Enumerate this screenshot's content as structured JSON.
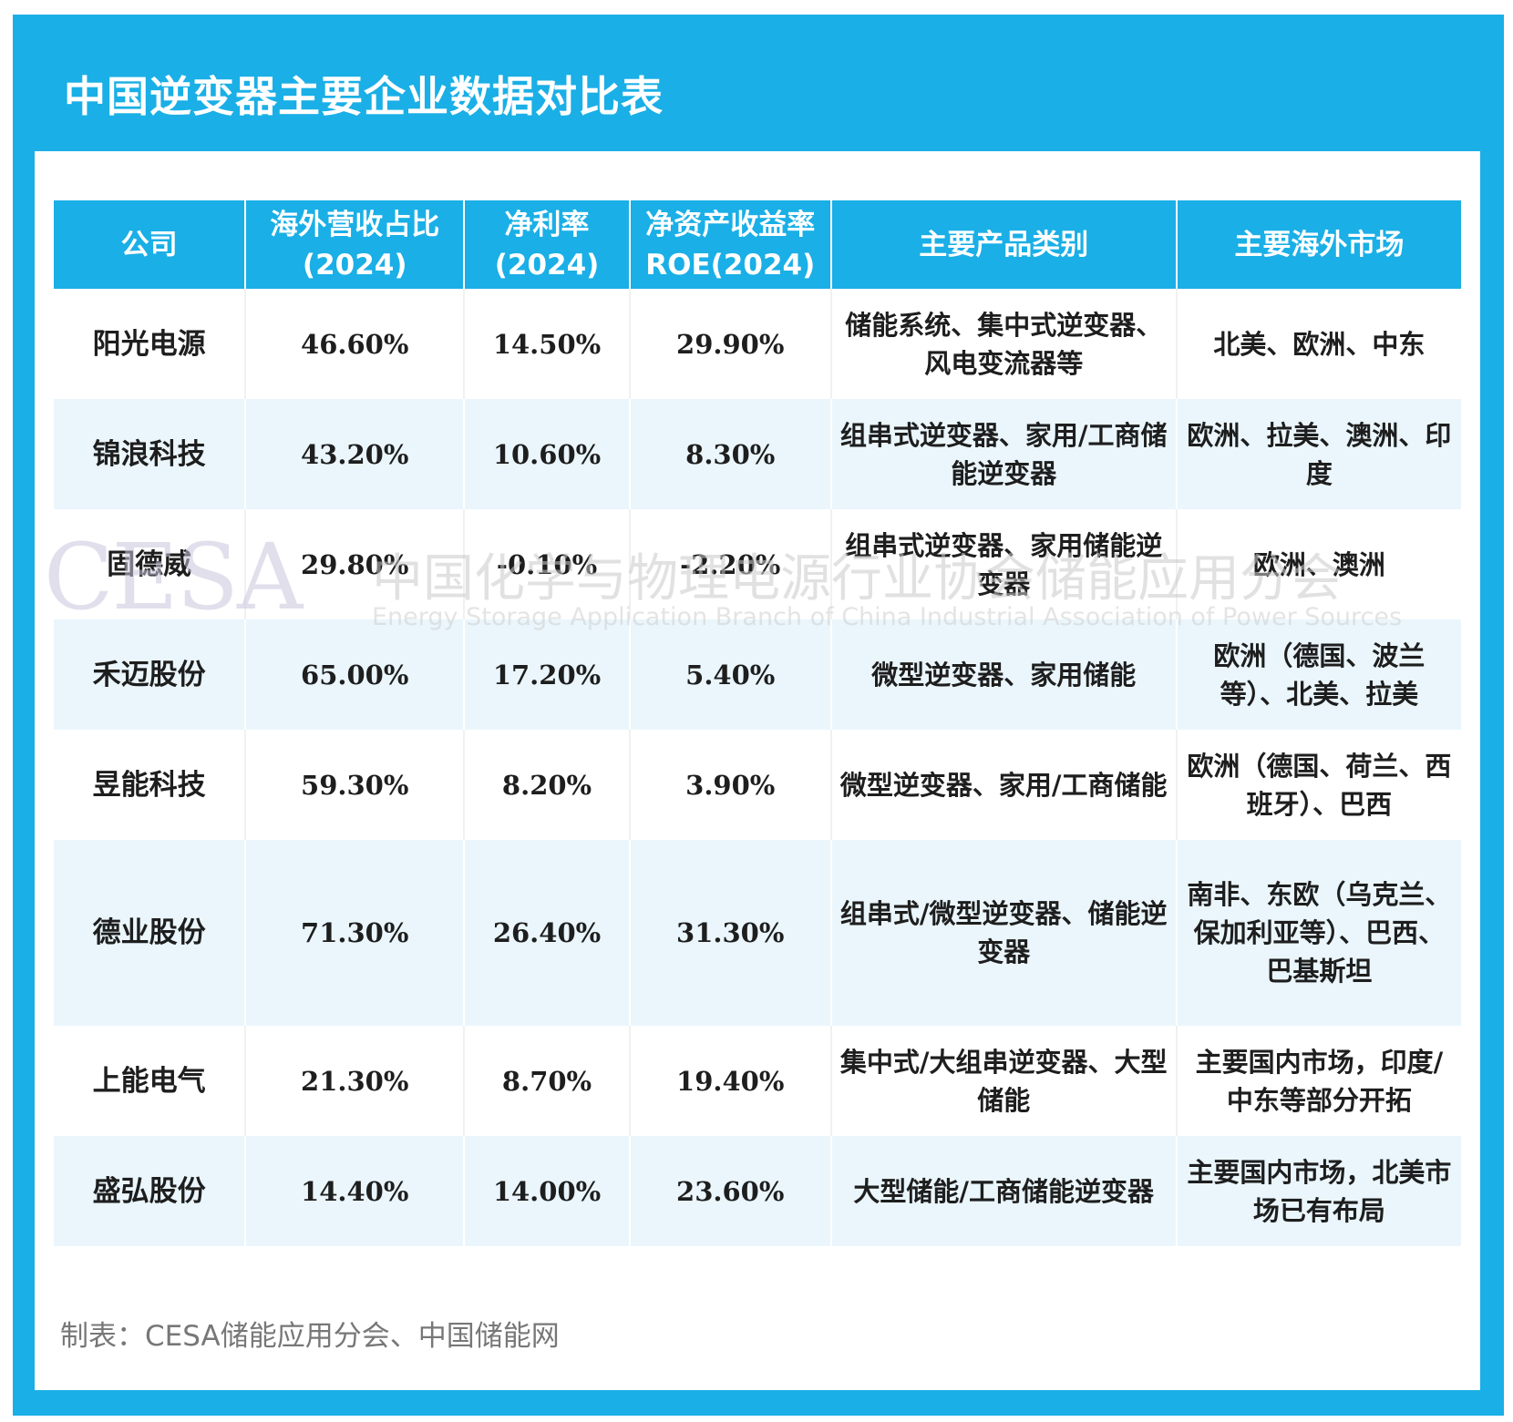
{
  "title": "中国逆变器主要企业数据对比表",
  "columns": [
    {
      "line1": "公司",
      "line2": ""
    },
    {
      "line1": "海外营收占比",
      "line2": "(2024)"
    },
    {
      "line1": "净利率",
      "line2": "(2024)"
    },
    {
      "line1": "净资产收益率",
      "line2": "ROE(2024)"
    },
    {
      "line1": "主要产品类别",
      "line2": ""
    },
    {
      "line1": "主要海外市场",
      "line2": ""
    }
  ],
  "rows": [
    {
      "company": "阳光电源",
      "overseas": "46.60%",
      "net_margin": "14.50%",
      "roe": "29.90%",
      "products": "储能系统、集中式逆变器、风电变流器等",
      "markets": "北美、欧洲、中东"
    },
    {
      "company": "锦浪科技",
      "overseas": "43.20%",
      "net_margin": "10.60%",
      "roe": "8.30%",
      "products": "组串式逆变器、家用/工商储能逆变器",
      "markets": "欧洲、拉美、澳洲、印度"
    },
    {
      "company": "固德威",
      "overseas": "29.80%",
      "net_margin": "-0.10%",
      "roe": "-2.20%",
      "products": "组串式逆变器、家用储能逆变器",
      "markets": "欧洲、澳洲"
    },
    {
      "company": "禾迈股份",
      "overseas": "65.00%",
      "net_margin": "17.20%",
      "roe": "5.40%",
      "products": "微型逆变器、家用储能",
      "markets": "欧洲（德国、波兰等）、北美、拉美"
    },
    {
      "company": "昱能科技",
      "overseas": "59.30%",
      "net_margin": "8.20%",
      "roe": "3.90%",
      "products": "微型逆变器、家用/工商储能",
      "markets": "欧洲（德国、荷兰、西班牙）、巴西"
    },
    {
      "company": "德业股份",
      "overseas": "71.30%",
      "net_margin": "26.40%",
      "roe": "31.30%",
      "products": "组串式/微型逆变器、储能逆变器",
      "markets": "南非、东欧（乌克兰、保加利亚等）、巴西、巴基斯坦"
    },
    {
      "company": "上能电气",
      "overseas": "21.30%",
      "net_margin": "8.70%",
      "roe": "19.40%",
      "products": "集中式/大组串逆变器、大型储能",
      "markets": "主要国内市场，印度/中东等部分开拓"
    },
    {
      "company": "盛弘股份",
      "overseas": "14.40%",
      "net_margin": "14.00%",
      "roe": "23.60%",
      "products": "大型储能/工商储能逆变器",
      "markets": "主要国内市场，北美市场已有布局"
    }
  ],
  "footer": "制表：CESA储能应用分会、中国储能网",
  "watermark": {
    "logo": "CESA",
    "cn": "中国化学与物理电源行业协会储能应用分会",
    "en": "Energy Storage Application Branch of China Industrial Association of Power Sources"
  },
  "colors": {
    "header_blue": "#1aafe6",
    "stripe": "#eaf6fc",
    "text": "#1e1e1e"
  }
}
